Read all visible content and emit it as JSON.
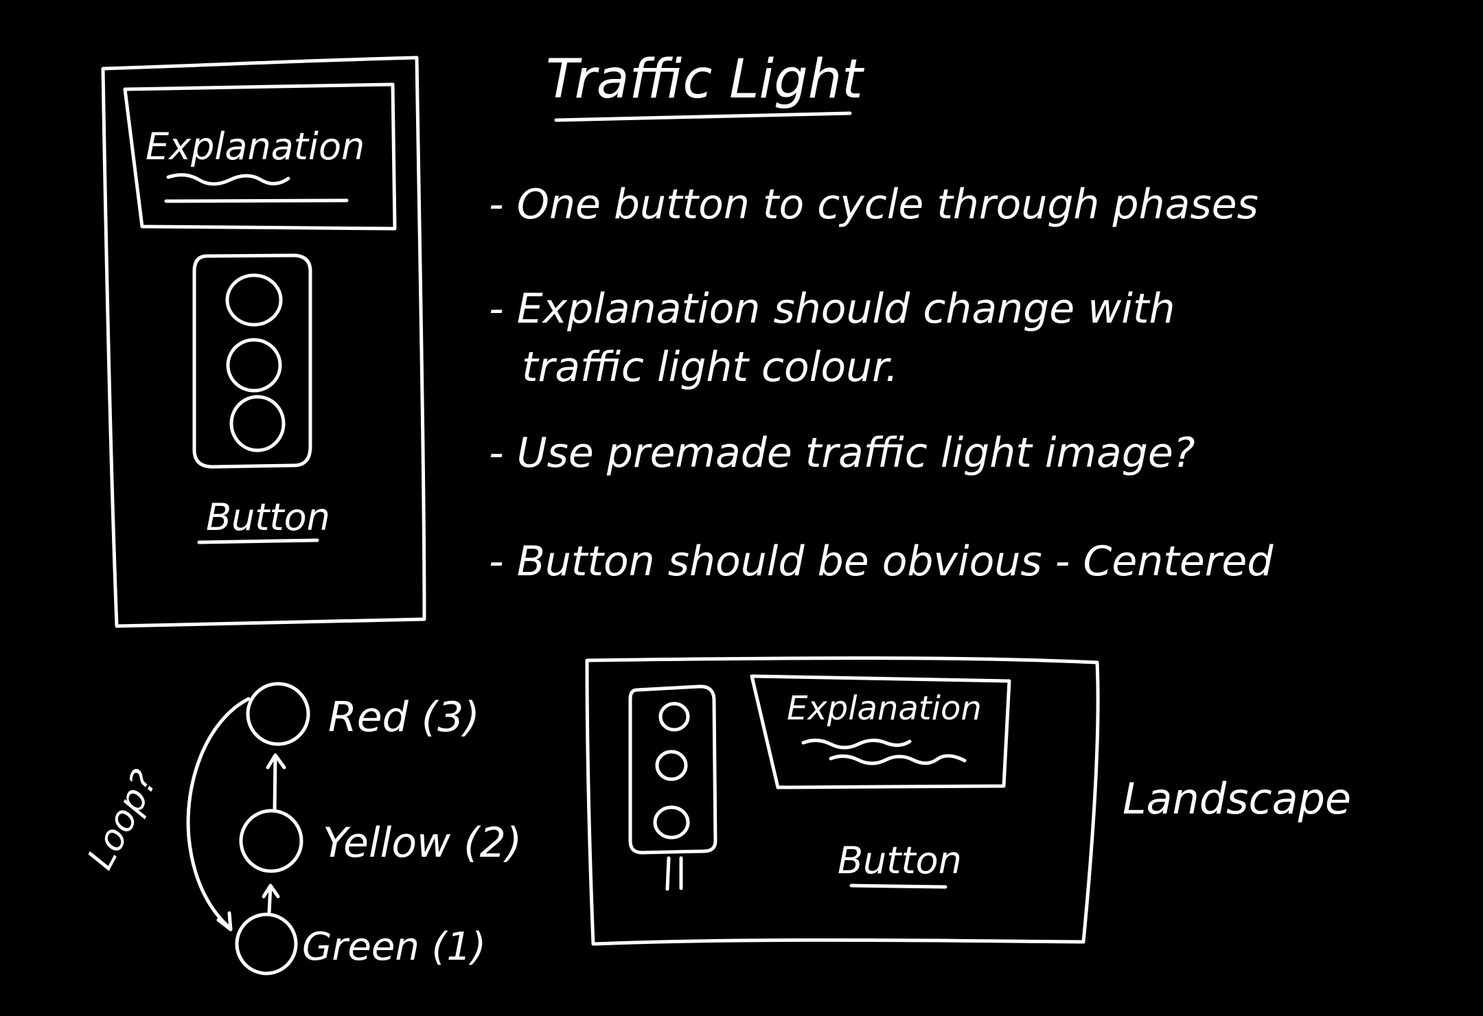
{
  "title": "Traffic Light",
  "notes": [
    "- One button to cycle through phases",
    "- Explanation should change with",
    "traffic light colour.",
    "- Use premade traffic light image?",
    "- Button should be obvious - Centered"
  ],
  "portrait_mockup": {
    "explanation_label": "Explanation",
    "button_label": "Button"
  },
  "landscape_mockup": {
    "explanation_label": "Explanation",
    "button_label": "Button",
    "caption": "Landscape"
  },
  "state_diagram": {
    "states": [
      {
        "label": "Red (3)"
      },
      {
        "label": "Yellow (2)"
      },
      {
        "label": "Green (1)"
      }
    ],
    "loop_label": "Loop?"
  },
  "colors": {
    "background": "#000000",
    "ink": "#ffffff"
  }
}
